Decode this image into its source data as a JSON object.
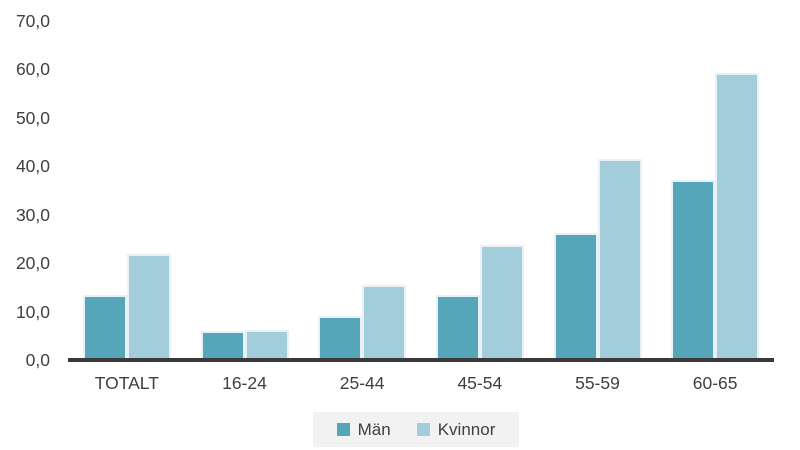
{
  "chart_data": {
    "type": "bar",
    "title": "",
    "categories": [
      "TOTALT",
      "16-24",
      "25-44",
      "45-54",
      "55-59",
      "60-65"
    ],
    "series": [
      {
        "name": "Män",
        "color": "#55a6b8",
        "values": [
          13.5,
          6.0,
          9.1,
          13.5,
          26.2,
          37.1
        ]
      },
      {
        "name": "Kvinnor",
        "color": "#a4cddc",
        "values": [
          21.8,
          6.1,
          15.5,
          23.7,
          41.5,
          59.2
        ]
      }
    ],
    "xlabel": "",
    "ylabel": "",
    "ylim": [
      0,
      70
    ],
    "ytick_step": 10,
    "ytick_labels": [
      "0,0",
      "10,0",
      "20,0",
      "30,0",
      "40,0",
      "50,0",
      "60,0",
      "70,0"
    ],
    "grid": false,
    "legend_position": "bottom",
    "decimal_format": "comma"
  },
  "style": {
    "axis_color": "#3a3a3a",
    "text_color": "#404040",
    "legend_background": "#f2f2f2",
    "bar_border_color": "#e7f1f6",
    "background": "#ffffff"
  }
}
